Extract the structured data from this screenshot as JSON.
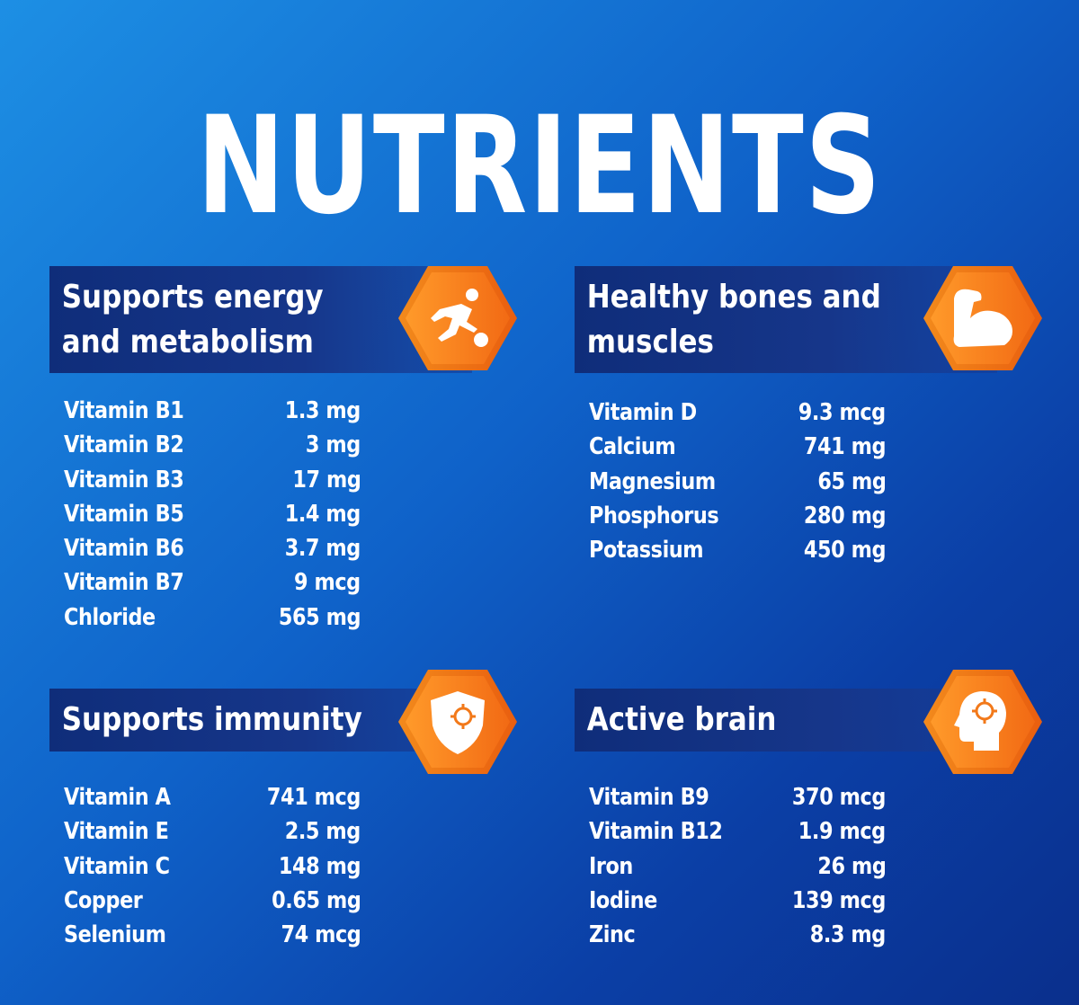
{
  "title": "NUTRIENTS",
  "colors": {
    "background": "#0f62c9",
    "header": "#16368a",
    "accent": "#f2791a",
    "text": "#ffffff"
  },
  "sections": [
    {
      "heading": "Supports energy\nand metabolism",
      "icon": "soccer-player-icon",
      "items": [
        {
          "name": "Vitamin B1",
          "value": "1.3 mg"
        },
        {
          "name": "Vitamin B2",
          "value": "3 mg"
        },
        {
          "name": "Vitamin B3",
          "value": "17 mg"
        },
        {
          "name": "Vitamin B5",
          "value": "1.4 mg"
        },
        {
          "name": "Vitamin B6",
          "value": "3.7 mg"
        },
        {
          "name": "Vitamin B7",
          "value": "9 mcg"
        },
        {
          "name": "Chloride",
          "value": "565 mg"
        }
      ]
    },
    {
      "heading": "Healthy bones and\nmuscles",
      "icon": "flexed-arm-icon",
      "items": [
        {
          "name": "Vitamin D",
          "value": "9.3 mcg"
        },
        {
          "name": "Calcium",
          "value": "741 mg"
        },
        {
          "name": "Magnesium",
          "value": "65 mg"
        },
        {
          "name": "Phosphorus",
          "value": "280 mg"
        },
        {
          "name": "Potassium",
          "value": "450 mg"
        }
      ]
    },
    {
      "heading": "Supports immunity",
      "icon": "shield-virus-icon",
      "items": [
        {
          "name": "Vitamin A",
          "value": "741 mcg"
        },
        {
          "name": "Vitamin E",
          "value": "2.5 mg"
        },
        {
          "name": "Vitamin C",
          "value": "148 mg"
        },
        {
          "name": "Copper",
          "value": "0.65 mg"
        },
        {
          "name": "Selenium",
          "value": "74 mcg"
        }
      ]
    },
    {
      "heading": "Active brain",
      "icon": "head-gear-icon",
      "items": [
        {
          "name": "Vitamin B9",
          "value": "370 mcg"
        },
        {
          "name": "Vitamin B12",
          "value": "1.9 mcg"
        },
        {
          "name": "Iron",
          "value": "26 mg"
        },
        {
          "name": "Iodine",
          "value": "139 mcg"
        },
        {
          "name": "Zinc",
          "value": "8.3 mg"
        }
      ]
    }
  ]
}
